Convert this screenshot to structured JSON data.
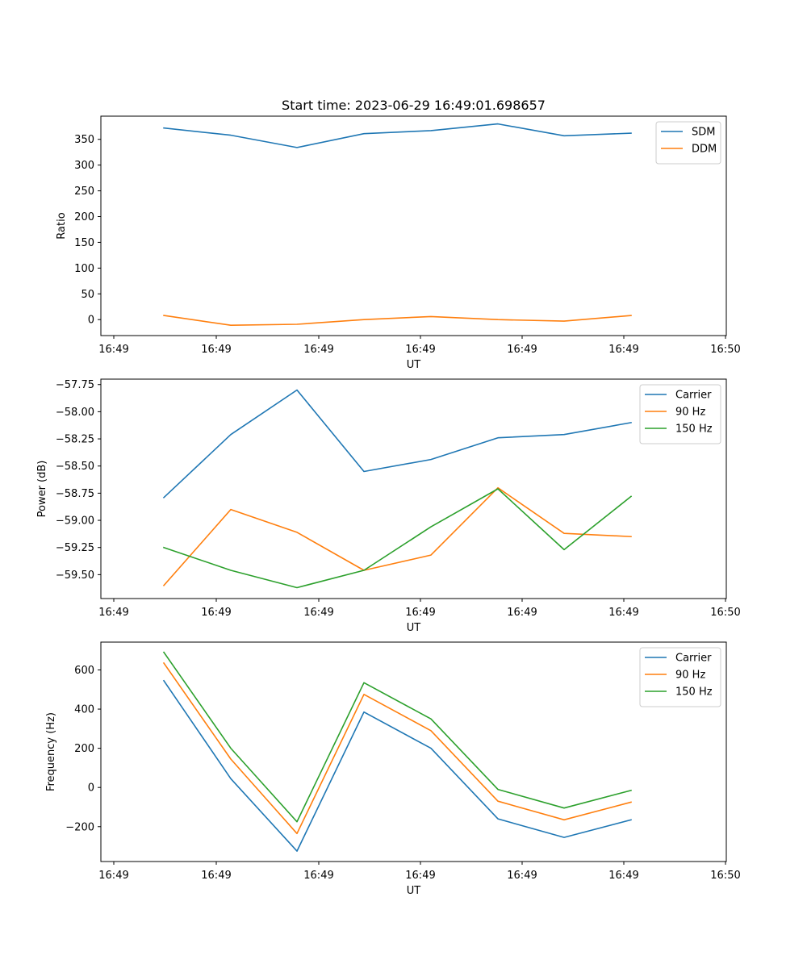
{
  "figure": {
    "title": "Start time: 2023-06-29 16:49:01.698657"
  },
  "chart_data": [
    {
      "type": "line",
      "xlabel": "UT",
      "ylabel": "Ratio",
      "xticks": [
        "16:49",
        "16:49",
        "16:49",
        "16:49",
        "16:49",
        "16:49",
        "16:50"
      ],
      "ylim": [
        -31,
        395
      ],
      "yticks": [
        0,
        50,
        100,
        150,
        200,
        250,
        300,
        350
      ],
      "ytick_labels": [
        "0",
        "50",
        "100",
        "150",
        "200",
        "250",
        "300",
        "350"
      ],
      "legend_position": "upper right",
      "series": [
        {
          "name": "SDM",
          "color": "#1f77b4",
          "values": [
            372,
            358,
            334,
            361,
            367,
            380,
            357,
            362
          ]
        },
        {
          "name": "DDM",
          "color": "#ff7f0e",
          "values": [
            8,
            -11,
            -9,
            0,
            6,
            0,
            -3,
            8
          ]
        }
      ]
    },
    {
      "type": "line",
      "xlabel": "UT",
      "ylabel": "Power (dB)",
      "xticks": [
        "16:49",
        "16:49",
        "16:49",
        "16:49",
        "16:49",
        "16:49",
        "16:50"
      ],
      "ylim": [
        -59.72,
        -57.7
      ],
      "yticks": [
        -59.5,
        -59.25,
        -59.0,
        -58.75,
        -58.5,
        -58.25,
        -58.0,
        -57.75
      ],
      "ytick_labels": [
        "−59.50",
        "−59.25",
        "−59.00",
        "−58.75",
        "−58.50",
        "−58.25",
        "−58.00",
        "−57.75"
      ],
      "legend_position": "upper right",
      "series": [
        {
          "name": "Carrier",
          "color": "#1f77b4",
          "values": [
            -58.79,
            -58.21,
            -57.8,
            -58.55,
            -58.44,
            -58.24,
            -58.21,
            -58.1
          ]
        },
        {
          "name": "90 Hz",
          "color": "#ff7f0e",
          "values": [
            -59.6,
            -58.9,
            -59.11,
            -59.46,
            -59.32,
            -58.7,
            -59.12,
            -59.15
          ]
        },
        {
          "name": "150 Hz",
          "color": "#2ca02c",
          "values": [
            -59.25,
            -59.46,
            -59.62,
            -59.46,
            -59.06,
            -58.71,
            -59.27,
            -58.78
          ]
        }
      ]
    },
    {
      "type": "line",
      "xlabel": "UT",
      "ylabel": "Frequency (Hz)",
      "xticks": [
        "16:49",
        "16:49",
        "16:49",
        "16:49",
        "16:49",
        "16:49",
        "16:50"
      ],
      "ylim": [
        -378,
        742
      ],
      "yticks": [
        -200,
        0,
        200,
        400,
        600
      ],
      "ytick_labels": [
        "−200",
        "0",
        "200",
        "400",
        "600"
      ],
      "legend_position": "upper right",
      "series": [
        {
          "name": "Carrier",
          "color": "#1f77b4",
          "values": [
            545,
            45,
            -325,
            385,
            200,
            -160,
            -255,
            -165
          ]
        },
        {
          "name": "90 Hz",
          "color": "#ff7f0e",
          "values": [
            635,
            145,
            -235,
            475,
            290,
            -70,
            -165,
            -75
          ]
        },
        {
          "name": "150 Hz",
          "color": "#2ca02c",
          "values": [
            690,
            200,
            -175,
            535,
            350,
            -10,
            -105,
            -15
          ]
        }
      ]
    }
  ]
}
